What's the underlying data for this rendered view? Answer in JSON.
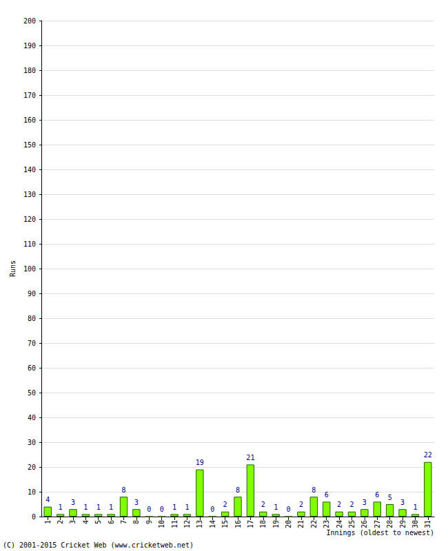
{
  "chart_data": {
    "type": "bar",
    "categories": [
      "1",
      "2",
      "3",
      "4",
      "5",
      "6",
      "7",
      "8",
      "9",
      "10",
      "11",
      "12",
      "13",
      "14",
      "15",
      "16",
      "17",
      "18",
      "19",
      "20",
      "21",
      "22",
      "23",
      "24",
      "25",
      "26",
      "27",
      "28",
      "29",
      "30",
      "31"
    ],
    "values": [
      4,
      1,
      3,
      1,
      1,
      1,
      8,
      3,
      0,
      0,
      1,
      1,
      19,
      0,
      2,
      8,
      21,
      2,
      1,
      0,
      2,
      8,
      6,
      2,
      2,
      3,
      6,
      5,
      3,
      1,
      22
    ],
    "color": "#80ff00",
    "x_label": "Innings (oldest to newest)",
    "y_label": "Runs",
    "annotations": [
      "(C) 2001-2015 Cricket Web (www.cricketweb.net)"
    ],
    "ylim": [
      0,
      200
    ],
    "yticks": [
      0,
      10,
      20,
      30,
      40,
      50,
      60,
      70,
      80,
      90,
      100,
      110,
      120,
      130,
      140,
      150,
      160,
      170,
      180,
      190,
      200
    ],
    "grid": true,
    "data_labels": true
  }
}
